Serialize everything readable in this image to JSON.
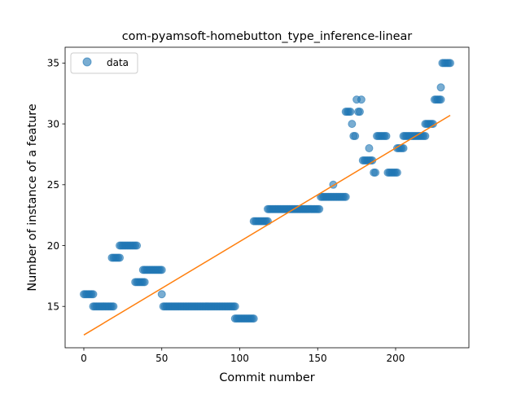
{
  "chart_data": {
    "type": "scatter",
    "title": "com-pyamsoft-homebutton_type_inference-linear",
    "xlabel": "Commit number",
    "ylabel": "Number of instance of a feature",
    "xlim": [
      -12,
      247
    ],
    "ylim": [
      11.6,
      36.3
    ],
    "xticks": [
      0,
      50,
      100,
      150,
      200
    ],
    "yticks": [
      15,
      20,
      25,
      30,
      35
    ],
    "xtick_labels": [
      "0",
      "50",
      "100",
      "150",
      "200"
    ],
    "ytick_labels": [
      "15",
      "20",
      "25",
      "30",
      "35"
    ],
    "legend": {
      "position": "top-left",
      "entries": [
        "data"
      ]
    },
    "grid": false,
    "series": [
      {
        "name": "data",
        "kind": "scatter",
        "color": "#1f77b4",
        "segments": [
          {
            "x_start": 0,
            "x_end": 6,
            "y": 16
          },
          {
            "x_start": 6,
            "x_end": 19,
            "y": 15
          },
          {
            "x_start": 18,
            "x_end": 23,
            "y": 19
          },
          {
            "x_start": 23,
            "x_end": 34,
            "y": 20
          },
          {
            "x_start": 33,
            "x_end": 39,
            "y": 17
          },
          {
            "x_start": 38,
            "x_end": 50,
            "y": 18
          },
          {
            "x_start": 50,
            "x_end": 50,
            "y": 16
          },
          {
            "x_start": 51,
            "x_end": 97,
            "y": 15
          },
          {
            "x_start": 97,
            "x_end": 109,
            "y": 14
          },
          {
            "x_start": 109,
            "x_end": 118,
            "y": 22
          },
          {
            "x_start": 118,
            "x_end": 151,
            "y": 23
          },
          {
            "x_start": 152,
            "x_end": 168,
            "y": 24
          },
          {
            "x_start": 160,
            "x_end": 160,
            "y": 25
          },
          {
            "x_start": 168,
            "x_end": 171,
            "y": 31
          },
          {
            "x_start": 172,
            "x_end": 172,
            "y": 30
          },
          {
            "x_start": 173,
            "x_end": 174,
            "y": 29
          },
          {
            "x_start": 175,
            "x_end": 175,
            "y": 32
          },
          {
            "x_start": 176,
            "x_end": 177,
            "y": 31
          },
          {
            "x_start": 178,
            "x_end": 178,
            "y": 32
          },
          {
            "x_start": 179,
            "x_end": 185,
            "y": 27
          },
          {
            "x_start": 183,
            "x_end": 183,
            "y": 28
          },
          {
            "x_start": 186,
            "x_end": 187,
            "y": 26
          },
          {
            "x_start": 188,
            "x_end": 194,
            "y": 29
          },
          {
            "x_start": 195,
            "x_end": 201,
            "y": 26
          },
          {
            "x_start": 201,
            "x_end": 205,
            "y": 28
          },
          {
            "x_start": 205,
            "x_end": 219,
            "y": 29
          },
          {
            "x_start": 219,
            "x_end": 224,
            "y": 30
          },
          {
            "x_start": 225,
            "x_end": 229,
            "y": 32
          },
          {
            "x_start": 229,
            "x_end": 229,
            "y": 33
          },
          {
            "x_start": 230,
            "x_end": 235,
            "y": 35
          }
        ]
      },
      {
        "name": "",
        "kind": "line",
        "color": "#ff7f0e",
        "x": [
          0,
          235
        ],
        "y": [
          12.65,
          30.7
        ]
      }
    ]
  }
}
